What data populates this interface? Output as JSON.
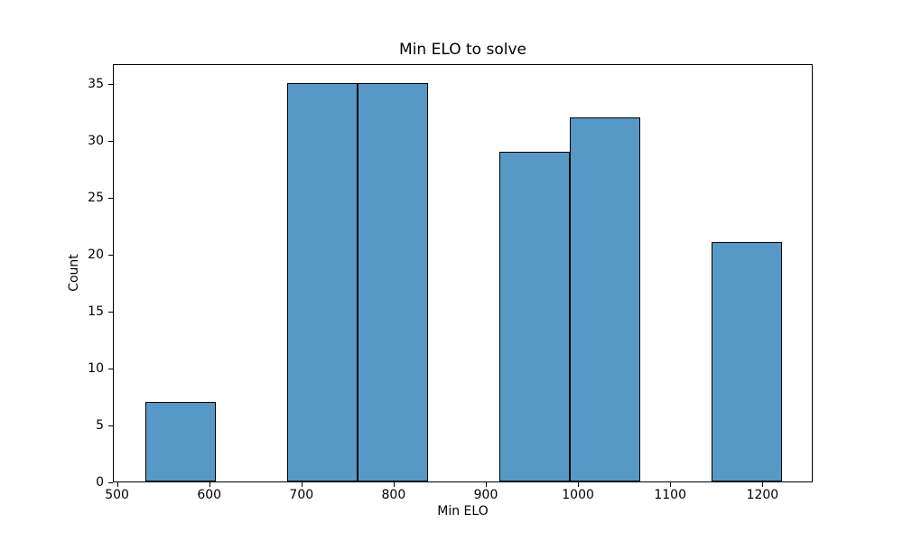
{
  "chart_data": {
    "type": "bar",
    "subtype": "histogram",
    "title": "Min ELO to solve",
    "xlabel": "Min ELO",
    "ylabel": "Count",
    "bin_edges": [
      530,
      606.67,
      683.33,
      760,
      836.67,
      913.33,
      990,
      1066.67,
      1143.33,
      1220
    ],
    "values": [
      7,
      0,
      35,
      35,
      0,
      29,
      32,
      0,
      21
    ],
    "xlim": [
      495.5,
      1254.5
    ],
    "ylim": [
      0,
      36.75
    ],
    "xticks": [
      500,
      600,
      700,
      800,
      900,
      1000,
      1100,
      1200
    ],
    "yticks": [
      0,
      5,
      10,
      15,
      20,
      25,
      30,
      35
    ],
    "grid": false,
    "legend_position": "none",
    "bar_color": "#5799c6",
    "bar_edge_color": "#000000",
    "background_color": "#ffffff",
    "frame": "full-box"
  }
}
